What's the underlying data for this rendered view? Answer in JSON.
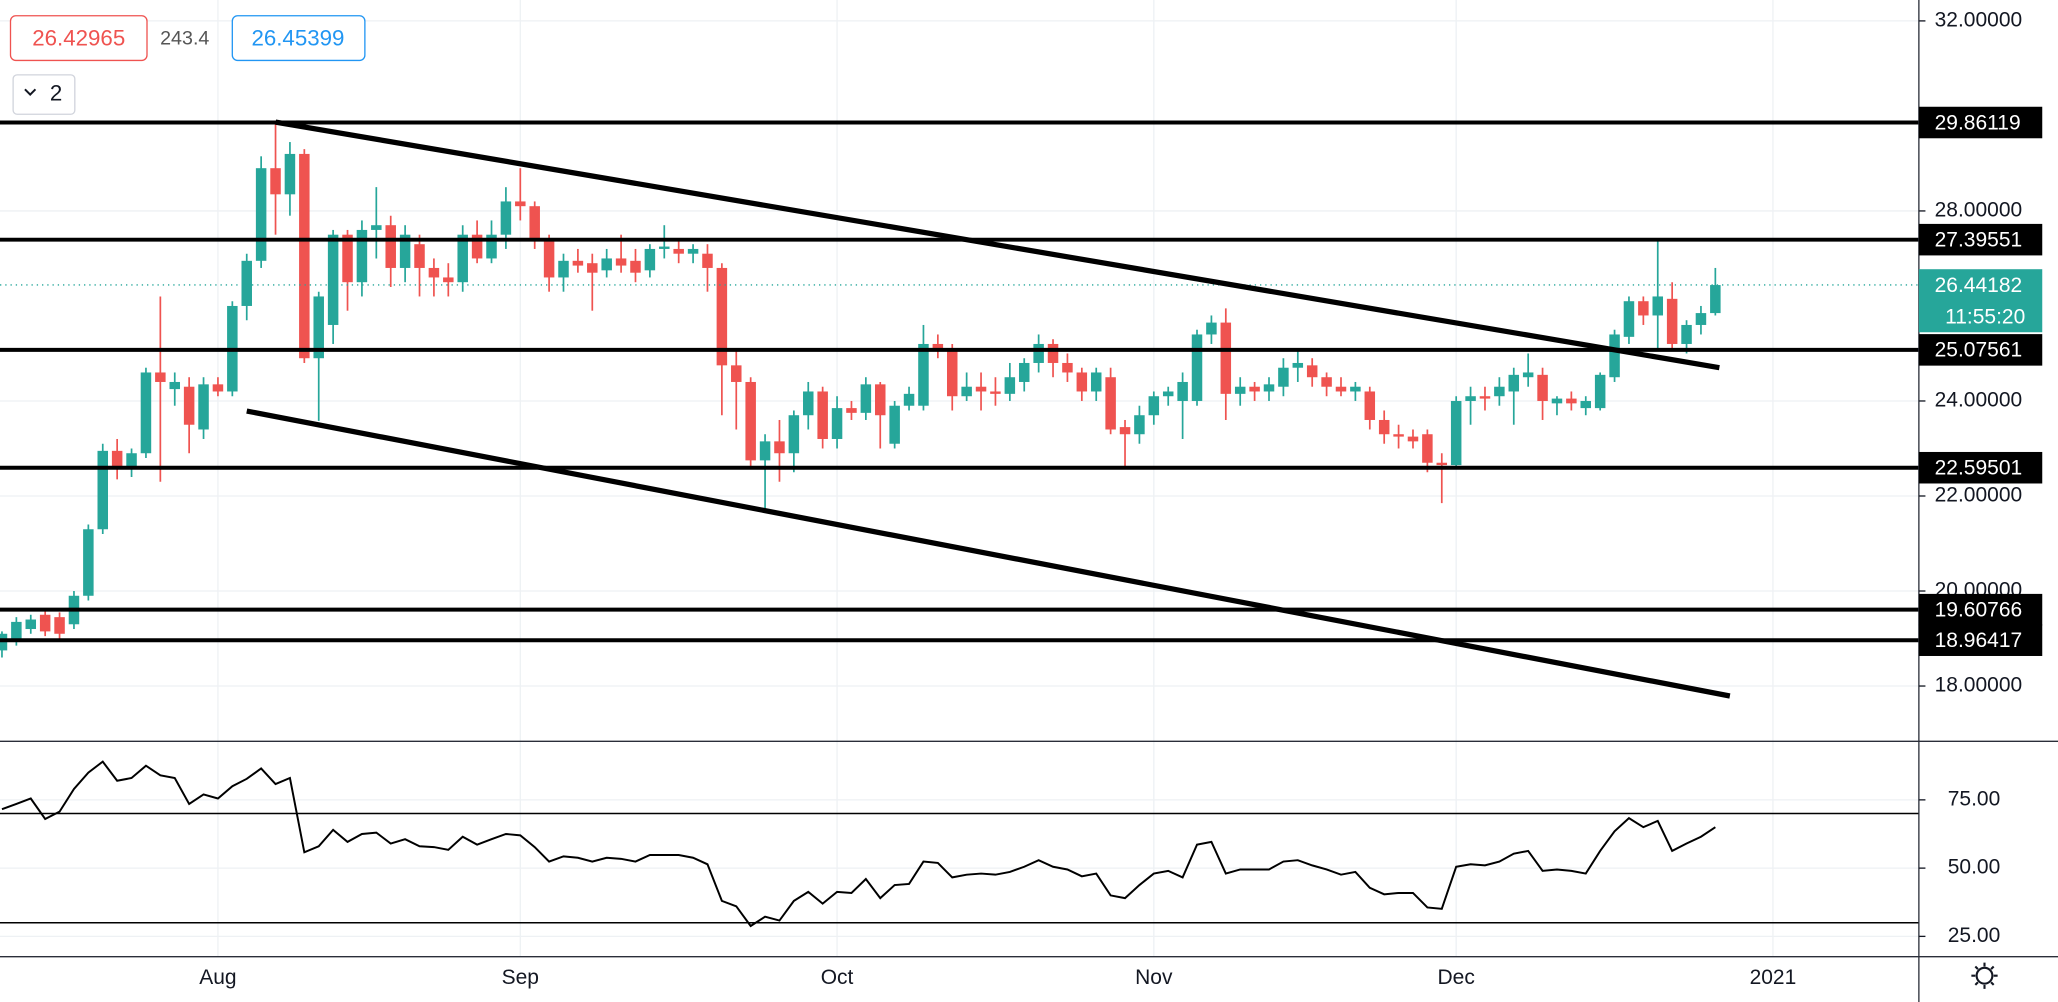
{
  "chart_data": [
    {
      "type": "candlestick",
      "header": {
        "bid": 26.42965,
        "spread": 243.4,
        "ask": 26.45399,
        "indicator_count": 2
      },
      "categories": [
        null,
        null,
        null,
        null,
        null,
        null,
        null,
        null,
        null,
        null,
        null,
        null,
        null,
        null,
        null,
        "Aug",
        null,
        null,
        null,
        null,
        null,
        null,
        null,
        null,
        null,
        null,
        null,
        null,
        null,
        null,
        null,
        null,
        null,
        null,
        null,
        null,
        "Sep",
        null,
        null,
        null,
        null,
        null,
        null,
        null,
        null,
        null,
        null,
        null,
        null,
        null,
        null,
        null,
        null,
        null,
        null,
        null,
        null,
        null,
        "Oct",
        null,
        null,
        null,
        null,
        null,
        null,
        null,
        null,
        null,
        null,
        null,
        null,
        null,
        null,
        null,
        null,
        null,
        null,
        null,
        null,
        null,
        "Nov",
        null,
        null,
        null,
        null,
        null,
        null,
        null,
        null,
        null,
        null,
        null,
        null,
        null,
        null,
        null,
        null,
        null,
        null,
        null,
        null,
        "Dec",
        null,
        null,
        null,
        null,
        null,
        null,
        null,
        null,
        null,
        null,
        null,
        null,
        null,
        null,
        null,
        null,
        null,
        null,
        null,
        null,
        null,
        "2021"
      ],
      "open": [
        18.75,
        18.95,
        19.2,
        19.5,
        19.45,
        19.3,
        19.9,
        21.3,
        22.95,
        22.6,
        22.9,
        24.6,
        24.25,
        24.3,
        23.4,
        24.35,
        24.2,
        26.0,
        26.95,
        28.9,
        28.35,
        29.2,
        24.9,
        25.6,
        27.5,
        26.5,
        27.6,
        27.7,
        26.8,
        27.3,
        26.8,
        26.6,
        26.5,
        27.5,
        27.0,
        27.5,
        28.2,
        28.1,
        27.4,
        26.6,
        26.95,
        26.9,
        26.75,
        27.0,
        26.95,
        26.75,
        27.2,
        27.2,
        27.1,
        27.1,
        26.8,
        24.75,
        24.4,
        22.75,
        23.15,
        22.9,
        23.7,
        24.2,
        23.2,
        23.85,
        23.75,
        24.35,
        23.1,
        23.9,
        23.9,
        25.2,
        25.1,
        24.1,
        24.3,
        24.2,
        24.15,
        24.4,
        24.8,
        25.2,
        24.8,
        24.6,
        24.2,
        24.5,
        23.45,
        23.3,
        23.7,
        24.1,
        24.0,
        24.0,
        25.4,
        25.65,
        24.15,
        24.3,
        24.2,
        24.3,
        24.7,
        24.75,
        24.5,
        24.3,
        24.2,
        24.2,
        23.6,
        23.3,
        23.25,
        23.3,
        22.7,
        22.65,
        24.0,
        24.1,
        24.1,
        24.2,
        24.5,
        24.55,
        23.95,
        24.05,
        23.85,
        23.85,
        24.5,
        25.35,
        26.1,
        25.8,
        26.15,
        25.2,
        25.6,
        25.85,
        null,
        null,
        null,
        null
      ],
      "high": [
        19.15,
        19.45,
        19.5,
        19.6,
        19.55,
        20.0,
        21.4,
        23.1,
        23.2,
        23.0,
        24.7,
        26.2,
        24.6,
        24.5,
        24.5,
        24.5,
        26.1,
        27.1,
        29.15,
        29.86,
        29.45,
        29.3,
        26.3,
        27.6,
        27.6,
        27.8,
        28.5,
        27.9,
        27.7,
        27.5,
        27.0,
        26.9,
        27.7,
        27.8,
        27.8,
        28.5,
        28.9,
        28.2,
        27.5,
        27.1,
        27.2,
        27.1,
        27.2,
        27.5,
        27.2,
        27.3,
        27.7,
        27.4,
        27.3,
        27.3,
        26.9,
        25.1,
        24.5,
        23.3,
        23.6,
        23.8,
        24.4,
        24.3,
        24.1,
        24.0,
        24.5,
        24.4,
        24.0,
        24.3,
        25.6,
        25.4,
        25.2,
        24.6,
        24.6,
        24.5,
        24.8,
        24.9,
        25.4,
        25.3,
        25.0,
        24.7,
        24.7,
        24.7,
        23.6,
        23.9,
        24.2,
        24.3,
        24.6,
        25.5,
        25.8,
        25.95,
        24.5,
        24.4,
        24.5,
        24.9,
        25.1,
        24.9,
        24.6,
        24.5,
        24.4,
        24.3,
        23.8,
        23.5,
        23.4,
        23.4,
        22.9,
        24.1,
        24.3,
        24.3,
        24.5,
        24.7,
        25.0,
        24.7,
        24.1,
        24.2,
        24.1,
        24.6,
        25.5,
        26.2,
        26.2,
        27.4,
        26.5,
        25.7,
        26.0,
        26.8,
        null,
        null,
        null,
        null
      ],
      "low": [
        18.6,
        18.85,
        19.1,
        19.05,
        19.0,
        19.2,
        19.8,
        21.2,
        22.35,
        22.4,
        22.8,
        22.3,
        23.9,
        22.9,
        23.2,
        24.1,
        24.1,
        25.7,
        26.8,
        27.5,
        27.9,
        24.8,
        23.58,
        25.2,
        25.9,
        26.2,
        27.0,
        26.4,
        26.5,
        26.2,
        26.2,
        26.2,
        26.3,
        26.9,
        26.9,
        27.2,
        27.8,
        27.2,
        26.3,
        26.3,
        26.7,
        25.9,
        26.6,
        26.7,
        26.5,
        26.6,
        27.0,
        26.9,
        26.9,
        26.3,
        23.7,
        23.4,
        22.6,
        21.7,
        22.3,
        22.5,
        23.4,
        23.0,
        23.0,
        23.6,
        23.6,
        23.0,
        23.0,
        23.8,
        23.8,
        24.9,
        23.8,
        24.0,
        23.8,
        23.9,
        24.0,
        24.2,
        24.6,
        24.5,
        24.4,
        24.0,
        24.0,
        23.3,
        22.6,
        23.1,
        23.5,
        23.9,
        23.2,
        23.9,
        25.2,
        23.6,
        23.9,
        24.0,
        24.0,
        24.1,
        24.4,
        24.3,
        24.1,
        24.1,
        24.0,
        23.4,
        23.1,
        23.0,
        23.0,
        22.5,
        21.85,
        22.6,
        23.5,
        23.8,
        23.9,
        23.5,
        24.3,
        23.6,
        23.7,
        23.8,
        23.7,
        23.8,
        24.4,
        25.2,
        25.6,
        25.1,
        25.1,
        25.0,
        25.4,
        25.8,
        null,
        null,
        null,
        null
      ],
      "close": [
        19.1,
        19.35,
        19.4,
        19.15,
        19.1,
        19.9,
        21.3,
        22.95,
        22.6,
        22.9,
        24.6,
        24.4,
        24.4,
        23.5,
        24.35,
        24.2,
        26.0,
        26.95,
        28.9,
        28.35,
        29.2,
        24.9,
        26.2,
        27.5,
        26.5,
        27.6,
        27.7,
        26.8,
        27.5,
        26.8,
        26.6,
        26.5,
        27.5,
        27.0,
        27.5,
        28.2,
        28.1,
        27.4,
        26.6,
        26.95,
        26.85,
        26.7,
        27.0,
        26.85,
        26.7,
        27.2,
        27.25,
        27.1,
        27.2,
        26.8,
        24.75,
        24.4,
        22.75,
        23.15,
        22.9,
        23.7,
        24.2,
        23.2,
        23.85,
        23.75,
        24.35,
        23.7,
        23.9,
        24.15,
        25.2,
        25.1,
        24.1,
        24.3,
        24.2,
        24.15,
        24.5,
        24.8,
        25.2,
        24.8,
        24.6,
        24.2,
        24.6,
        23.4,
        23.3,
        23.7,
        24.1,
        24.2,
        24.4,
        25.4,
        25.65,
        24.15,
        24.3,
        24.2,
        24.35,
        24.7,
        24.8,
        24.5,
        24.3,
        24.2,
        24.3,
        23.6,
        23.3,
        23.25,
        23.15,
        22.7,
        22.65,
        24.0,
        24.1,
        24.05,
        24.3,
        24.55,
        24.6,
        24.0,
        24.05,
        23.95,
        24.0,
        24.55,
        25.4,
        26.1,
        25.8,
        26.2,
        25.2,
        25.6,
        25.85,
        26.44,
        null,
        null,
        null,
        null
      ],
      "up_color": "#26a69a",
      "down_color": "#ef5350",
      "ylim": [
        16.85,
        32.44
      ],
      "yticks": [
        {
          "value": 18,
          "label": "18.00000"
        },
        {
          "value": 20,
          "label": "20.00000"
        },
        {
          "value": 22,
          "label": "22.00000"
        },
        {
          "value": 24,
          "label": "24.00000"
        },
        {
          "value": 28,
          "label": "28.00000"
        },
        {
          "value": 32,
          "label": "32.00000"
        }
      ],
      "grid": true,
      "price_lines": [
        29.86119,
        27.39551,
        25.07561,
        22.59501,
        19.60766,
        18.96417
      ],
      "last_price": 26.44182,
      "countdown": "11:55:20"
    },
    {
      "type": "line",
      "values": [
        71.6,
        73.5,
        75.5,
        68,
        70.7,
        79,
        85,
        89,
        82,
        83,
        87.5,
        84,
        83,
        73.5,
        77,
        75.5,
        80,
        82.7,
        86.5,
        80.8,
        83,
        55.8,
        58,
        64,
        59.6,
        62.5,
        63,
        59,
        60.6,
        58,
        57.7,
        56.7,
        61.5,
        58.6,
        60.6,
        62.5,
        62,
        57.7,
        52.4,
        54.3,
        53.8,
        52.4,
        53.8,
        53.4,
        52.4,
        54.8,
        54.8,
        54.8,
        53.8,
        51.4,
        38,
        36,
        28.8,
        32.2,
        30.8,
        38,
        41.3,
        37,
        41.3,
        40.9,
        46,
        39,
        43.8,
        44.2,
        52.4,
        51.9,
        46.6,
        47.6,
        48,
        47.6,
        48.6,
        50.5,
        52.9,
        50.5,
        49.5,
        47,
        48,
        40,
        39,
        43.8,
        48,
        49,
        46.6,
        58.6,
        59.6,
        48,
        49.5,
        49.5,
        49.5,
        52.4,
        52.9,
        51,
        49.5,
        47.6,
        48.6,
        42.8,
        40.4,
        40.9,
        40.9,
        35.6,
        35.1,
        50.5,
        51.4,
        51,
        52.4,
        55.3,
        56.3,
        49,
        49.5,
        49,
        48,
        56.3,
        63.5,
        68.3,
        65,
        67.3,
        56.3,
        59,
        61.5,
        65,
        null,
        null,
        null,
        null
      ],
      "color": "#000000",
      "ylim": [
        17.8,
        96.2
      ],
      "yticks": [
        {
          "value": 75,
          "label": "75.00"
        },
        {
          "value": 50,
          "label": "50.00"
        },
        {
          "value": 25,
          "label": "25.00"
        }
      ],
      "bands": [
        70,
        30
      ]
    }
  ]
}
